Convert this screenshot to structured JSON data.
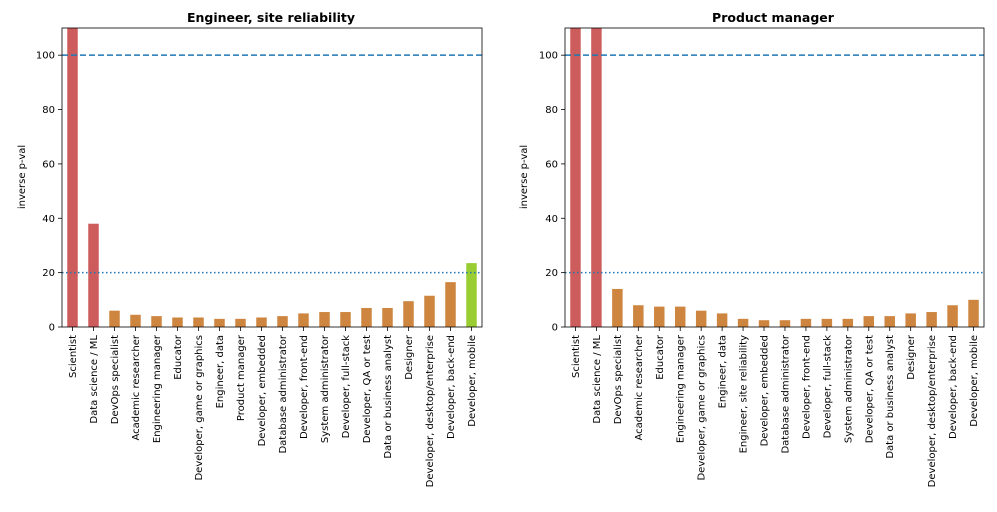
{
  "colors": {
    "high": "#cd5c5c",
    "mid": "#cd853f",
    "low": "#9acd32",
    "ref_line_100": "#1f77b4",
    "ref_line_20": "#1f77b4"
  },
  "chart_data": [
    {
      "type": "bar",
      "title": "Engineer, site reliability",
      "xlabel": "",
      "ylabel": "inverse p-val",
      "ylim": [
        0,
        110
      ],
      "yticks": [
        0,
        20,
        40,
        60,
        80,
        100
      ],
      "reference_lines": [
        {
          "y": 100,
          "style": "dashed"
        },
        {
          "y": 20,
          "style": "dotted"
        }
      ],
      "categories": [
        "Scientist",
        "Data science / ML",
        "DevOps specialist",
        "Academic researcher",
        "Engineering manager",
        "Educator",
        "Developer, game or graphics",
        "Engineer, data",
        "Product manager",
        "Developer, embedded",
        "Database administrator",
        "Developer, front-end",
        "System administrator",
        "Developer, full-stack",
        "Developer, QA or test",
        "Data or business analyst",
        "Designer",
        "Developer, desktop/enterprise",
        "Developer, back-end",
        "Developer, mobile"
      ],
      "values": [
        110,
        38,
        6,
        4.5,
        4,
        3.5,
        3.5,
        3,
        3,
        3.5,
        4,
        5,
        5.5,
        5.5,
        7,
        7,
        9.5,
        11.5,
        16.5,
        23.5
      ],
      "bar_color_groups": [
        "high",
        "high",
        "mid",
        "mid",
        "mid",
        "mid",
        "mid",
        "mid",
        "mid",
        "mid",
        "mid",
        "mid",
        "mid",
        "mid",
        "mid",
        "mid",
        "mid",
        "mid",
        "mid",
        "low"
      ],
      "grid": false
    },
    {
      "type": "bar",
      "title": "Product manager",
      "xlabel": "",
      "ylabel": "inverse p-val",
      "ylim": [
        0,
        110
      ],
      "yticks": [
        0,
        20,
        40,
        60,
        80,
        100
      ],
      "reference_lines": [
        {
          "y": 100,
          "style": "dashed"
        },
        {
          "y": 20,
          "style": "dotted"
        }
      ],
      "categories": [
        "Scientist",
        "Data science / ML",
        "DevOps specialist",
        "Academic researcher",
        "Educator",
        "Engineering manager",
        "Developer, game or graphics",
        "Engineer, data",
        "Engineer, site reliability",
        "Developer, embedded",
        "Database administrator",
        "Developer, front-end",
        "Developer, full-stack",
        "System administrator",
        "Developer, QA or test",
        "Data or business analyst",
        "Designer",
        "Developer, desktop/enterprise",
        "Developer, back-end",
        "Developer, mobile"
      ],
      "values": [
        110,
        110,
        14,
        8,
        7.5,
        7.5,
        6,
        5,
        3,
        2.5,
        2.5,
        3,
        3,
        3,
        4,
        4,
        5,
        5.5,
        8,
        10
      ],
      "bar_color_groups": [
        "high",
        "high",
        "mid",
        "mid",
        "mid",
        "mid",
        "mid",
        "mid",
        "mid",
        "mid",
        "mid",
        "mid",
        "mid",
        "mid",
        "mid",
        "mid",
        "mid",
        "mid",
        "mid",
        "mid"
      ],
      "grid": false
    }
  ]
}
